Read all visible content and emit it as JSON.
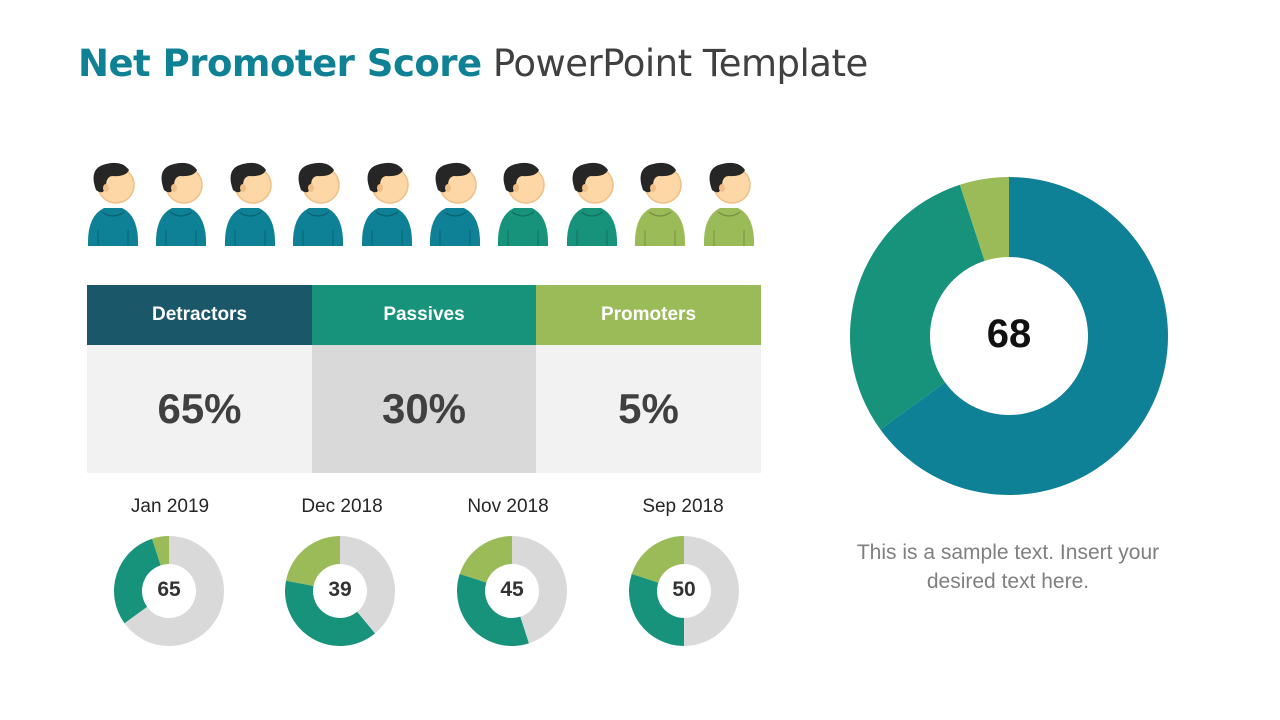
{
  "title": {
    "accent": "Net Promoter Score",
    "rest": " PowerPoint Template"
  },
  "people": [
    {
      "group": "detractor"
    },
    {
      "group": "detractor"
    },
    {
      "group": "detractor"
    },
    {
      "group": "detractor"
    },
    {
      "group": "detractor"
    },
    {
      "group": "detractor"
    },
    {
      "group": "passive"
    },
    {
      "group": "passive"
    },
    {
      "group": "promoter"
    },
    {
      "group": "promoter"
    }
  ],
  "table": {
    "columns": [
      {
        "label": "Detractors",
        "value": "65%"
      },
      {
        "label": "Passives",
        "value": "30%"
      },
      {
        "label": "Promoters",
        "value": "5%"
      }
    ]
  },
  "colors": {
    "accent": "#0e8294",
    "detractor": "#0e8196",
    "passive": "#16937a",
    "promoter": "#9bbb59",
    "header_detractor": "#1a5768",
    "header_passive": "#16937a",
    "header_promoter": "#9bbb59",
    "cell_light": "#f2f2f2",
    "cell_mid": "#d9d9d9",
    "neutral": "#d9d9d9"
  },
  "main_donut": {
    "score": "68"
  },
  "sample_text": "This is a sample text. Insert your desired text here.",
  "chart_data": [
    {
      "type": "pie",
      "donut": true,
      "center_label": "68",
      "segments": [
        {
          "name": "Detractors",
          "value": 65
        },
        {
          "name": "Passives",
          "value": 30
        },
        {
          "name": "Promoters",
          "value": 5
        }
      ]
    },
    {
      "type": "pie",
      "donut": true,
      "title": "Jan 2019",
      "center_label": "65",
      "segments": [
        {
          "name": "Promoters",
          "value": 5
        },
        {
          "name": "Passives",
          "value": 30
        },
        {
          "name": "Rest",
          "value": 65
        }
      ]
    },
    {
      "type": "pie",
      "donut": true,
      "title": "Dec 2018",
      "center_label": "39",
      "segments": [
        {
          "name": "Promoters",
          "value": 22
        },
        {
          "name": "Passives",
          "value": 39
        },
        {
          "name": "Rest",
          "value": 39
        }
      ]
    },
    {
      "type": "pie",
      "donut": true,
      "title": "Nov 2018",
      "center_label": "45",
      "segments": [
        {
          "name": "Promoters",
          "value": 20
        },
        {
          "name": "Passives",
          "value": 35
        },
        {
          "name": "Rest",
          "value": 45
        }
      ]
    },
    {
      "type": "pie",
      "donut": true,
      "title": "Sep 2018",
      "center_label": "50",
      "segments": [
        {
          "name": "Promoters",
          "value": 20
        },
        {
          "name": "Passives",
          "value": 30
        },
        {
          "name": "Rest",
          "value": 50
        }
      ]
    }
  ]
}
